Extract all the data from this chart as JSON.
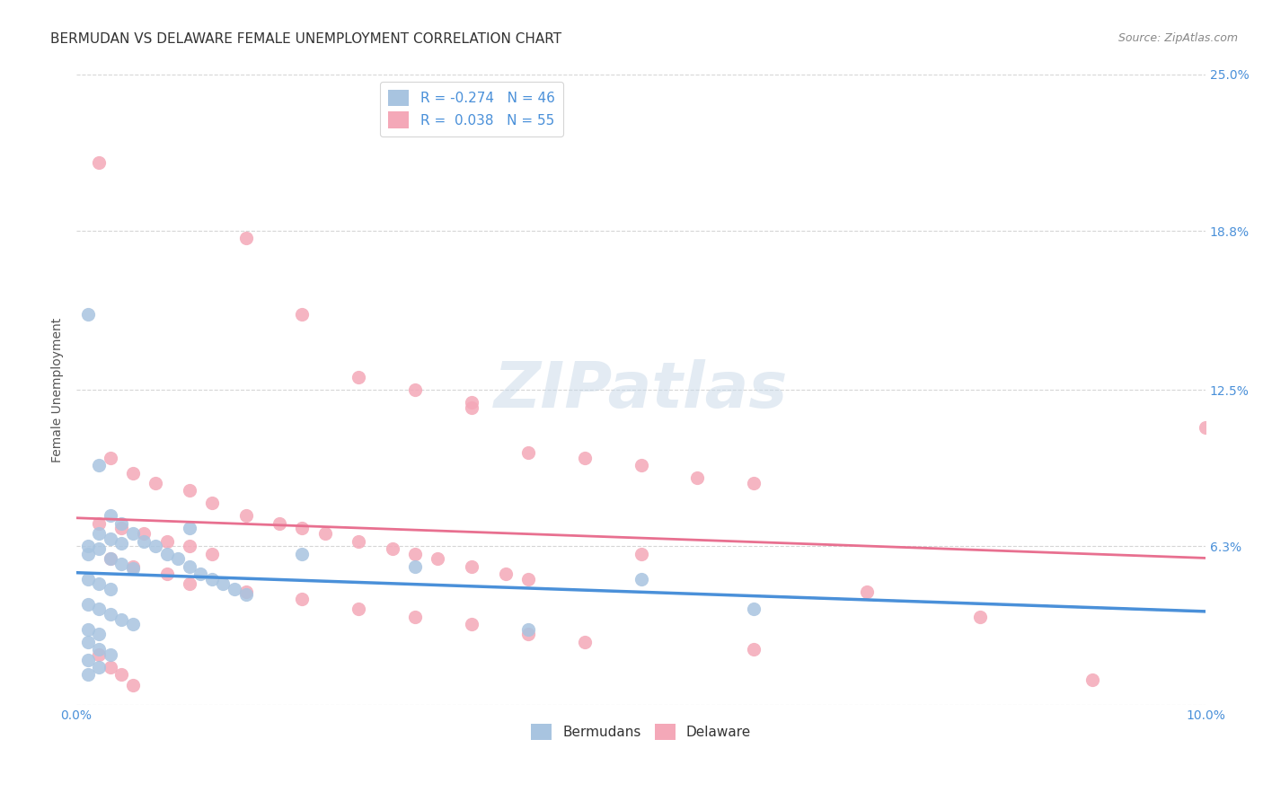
{
  "title": "BERMUDAN VS DELAWARE FEMALE UNEMPLOYMENT CORRELATION CHART",
  "source": "Source: ZipAtlas.com",
  "ylabel": "Female Unemployment",
  "xlabel": "",
  "xlim": [
    0.0,
    0.1
  ],
  "ylim": [
    0.0,
    0.25
  ],
  "xticks": [
    0.0,
    0.02,
    0.04,
    0.06,
    0.08,
    0.1
  ],
  "xticklabels": [
    "0.0%",
    "",
    "",
    "",
    "",
    "10.0%"
  ],
  "ytick_positions": [
    0.0,
    0.063,
    0.125,
    0.188,
    0.25
  ],
  "ytick_labels": [
    "",
    "6.3%",
    "12.5%",
    "18.8%",
    "25.0%"
  ],
  "watermark": "ZIPatlas",
  "legend_R_blue": "R = -0.274",
  "legend_N_blue": "N = 46",
  "legend_R_pink": "R =  0.038",
  "legend_N_pink": "N = 55",
  "blue_color": "#a8c4e0",
  "pink_color": "#f4a8b8",
  "blue_line_color": "#4a90d9",
  "pink_line_color": "#e87090",
  "blue_scatter": [
    [
      0.001,
      0.155
    ],
    [
      0.002,
      0.095
    ],
    [
      0.003,
      0.075
    ],
    [
      0.004,
      0.072
    ],
    [
      0.005,
      0.068
    ],
    [
      0.006,
      0.065
    ],
    [
      0.007,
      0.063
    ],
    [
      0.008,
      0.06
    ],
    [
      0.009,
      0.058
    ],
    [
      0.01,
      0.055
    ],
    [
      0.011,
      0.052
    ],
    [
      0.012,
      0.05
    ],
    [
      0.013,
      0.048
    ],
    [
      0.014,
      0.046
    ],
    [
      0.015,
      0.044
    ],
    [
      0.002,
      0.068
    ],
    [
      0.003,
      0.066
    ],
    [
      0.004,
      0.064
    ],
    [
      0.001,
      0.063
    ],
    [
      0.002,
      0.062
    ],
    [
      0.001,
      0.06
    ],
    [
      0.003,
      0.058
    ],
    [
      0.004,
      0.056
    ],
    [
      0.005,
      0.054
    ],
    [
      0.001,
      0.05
    ],
    [
      0.002,
      0.048
    ],
    [
      0.003,
      0.046
    ],
    [
      0.001,
      0.04
    ],
    [
      0.002,
      0.038
    ],
    [
      0.003,
      0.036
    ],
    [
      0.004,
      0.034
    ],
    [
      0.005,
      0.032
    ],
    [
      0.001,
      0.03
    ],
    [
      0.002,
      0.028
    ],
    [
      0.001,
      0.025
    ],
    [
      0.002,
      0.022
    ],
    [
      0.003,
      0.02
    ],
    [
      0.001,
      0.018
    ],
    [
      0.002,
      0.015
    ],
    [
      0.001,
      0.012
    ],
    [
      0.05,
      0.05
    ],
    [
      0.06,
      0.038
    ],
    [
      0.03,
      0.055
    ],
    [
      0.02,
      0.06
    ],
    [
      0.04,
      0.03
    ],
    [
      0.01,
      0.07
    ]
  ],
  "pink_scatter": [
    [
      0.002,
      0.215
    ],
    [
      0.015,
      0.185
    ],
    [
      0.02,
      0.155
    ],
    [
      0.025,
      0.13
    ],
    [
      0.03,
      0.125
    ],
    [
      0.035,
      0.12
    ],
    [
      0.035,
      0.118
    ],
    [
      0.04,
      0.1
    ],
    [
      0.045,
      0.098
    ],
    [
      0.05,
      0.095
    ],
    [
      0.055,
      0.09
    ],
    [
      0.06,
      0.088
    ],
    [
      0.003,
      0.098
    ],
    [
      0.005,
      0.092
    ],
    [
      0.007,
      0.088
    ],
    [
      0.01,
      0.085
    ],
    [
      0.012,
      0.08
    ],
    [
      0.015,
      0.075
    ],
    [
      0.018,
      0.072
    ],
    [
      0.02,
      0.07
    ],
    [
      0.022,
      0.068
    ],
    [
      0.025,
      0.065
    ],
    [
      0.028,
      0.062
    ],
    [
      0.03,
      0.06
    ],
    [
      0.032,
      0.058
    ],
    [
      0.035,
      0.055
    ],
    [
      0.038,
      0.052
    ],
    [
      0.04,
      0.05
    ],
    [
      0.002,
      0.072
    ],
    [
      0.004,
      0.07
    ],
    [
      0.006,
      0.068
    ],
    [
      0.008,
      0.065
    ],
    [
      0.01,
      0.063
    ],
    [
      0.012,
      0.06
    ],
    [
      0.003,
      0.058
    ],
    [
      0.005,
      0.055
    ],
    [
      0.008,
      0.052
    ],
    [
      0.01,
      0.048
    ],
    [
      0.015,
      0.045
    ],
    [
      0.02,
      0.042
    ],
    [
      0.025,
      0.038
    ],
    [
      0.03,
      0.035
    ],
    [
      0.035,
      0.032
    ],
    [
      0.04,
      0.028
    ],
    [
      0.045,
      0.025
    ],
    [
      0.05,
      0.06
    ],
    [
      0.06,
      0.022
    ],
    [
      0.07,
      0.045
    ],
    [
      0.08,
      0.035
    ],
    [
      0.09,
      0.01
    ],
    [
      0.1,
      0.11
    ],
    [
      0.002,
      0.02
    ],
    [
      0.003,
      0.015
    ],
    [
      0.004,
      0.012
    ],
    [
      0.005,
      0.008
    ]
  ],
  "title_fontsize": 11,
  "source_fontsize": 9,
  "axis_label_fontsize": 10,
  "tick_fontsize": 10,
  "legend_fontsize": 11,
  "watermark_fontsize": 52,
  "background_color": "#ffffff",
  "grid_color": "#cccccc",
  "title_color": "#333333",
  "source_color": "#888888",
  "ytick_color": "#4a90d9",
  "xtick_color": "#4a90d9"
}
